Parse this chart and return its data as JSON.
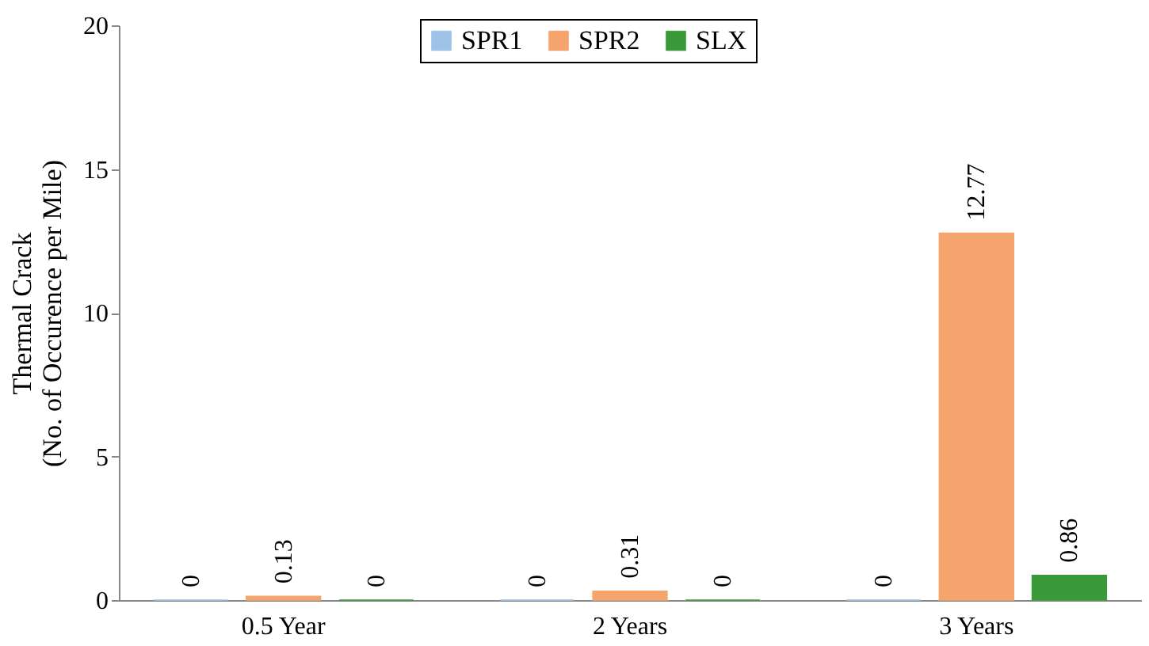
{
  "chart_data": {
    "type": "bar",
    "ylabel": "Thermal Crack\n(No. of Occurence per Mile)",
    "categories": [
      "0.5 Year",
      "2 Years",
      "3 Years"
    ],
    "series": [
      {
        "name": "SPR1",
        "color": "#9dc3e6",
        "values": [
          0,
          0,
          0
        ]
      },
      {
        "name": "SPR2",
        "color": "#f4a46c",
        "values": [
          0.13,
          0.31,
          12.77
        ]
      },
      {
        "name": "SLX",
        "color": "#3a9a3a",
        "values": [
          0,
          0,
          0.86
        ]
      }
    ],
    "ylim": [
      0,
      20
    ],
    "yticks": [
      0,
      5,
      10,
      15,
      20
    ],
    "grid": false,
    "legend": "top",
    "data_labels": true
  }
}
